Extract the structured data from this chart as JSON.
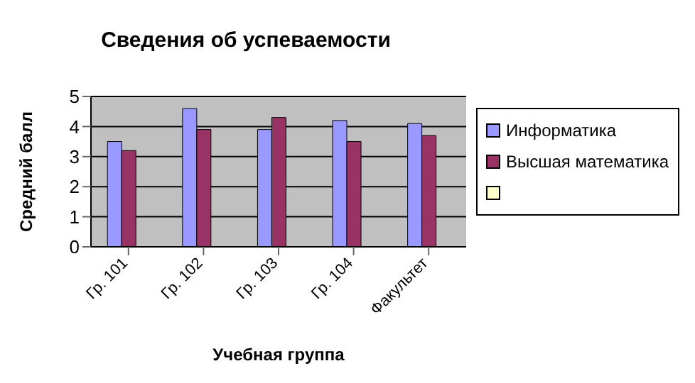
{
  "chart_data": {
    "type": "bar",
    "title": "Сведения об успеваемости",
    "xlabel": "Учебная группа",
    "ylabel": "Средний балл",
    "categories": [
      "Гр. 101",
      "Гр. 102",
      "Гр. 103",
      "Гр. 104",
      "Факультет"
    ],
    "series": [
      {
        "name": "Информатика",
        "color": "#9999ff",
        "values": [
          3.5,
          4.6,
          3.9,
          4.2,
          4.1
        ]
      },
      {
        "name": "Высшая математика",
        "color": "#993366",
        "values": [
          3.2,
          3.9,
          4.3,
          3.5,
          3.7
        ]
      },
      {
        "color": "#ffffcc",
        "values": [
          null,
          null,
          null,
          null,
          null
        ]
      }
    ],
    "ylim": [
      0,
      5
    ],
    "yticks": [
      0,
      1,
      2,
      3,
      4,
      5
    ],
    "grid": "y",
    "legend": "right"
  }
}
